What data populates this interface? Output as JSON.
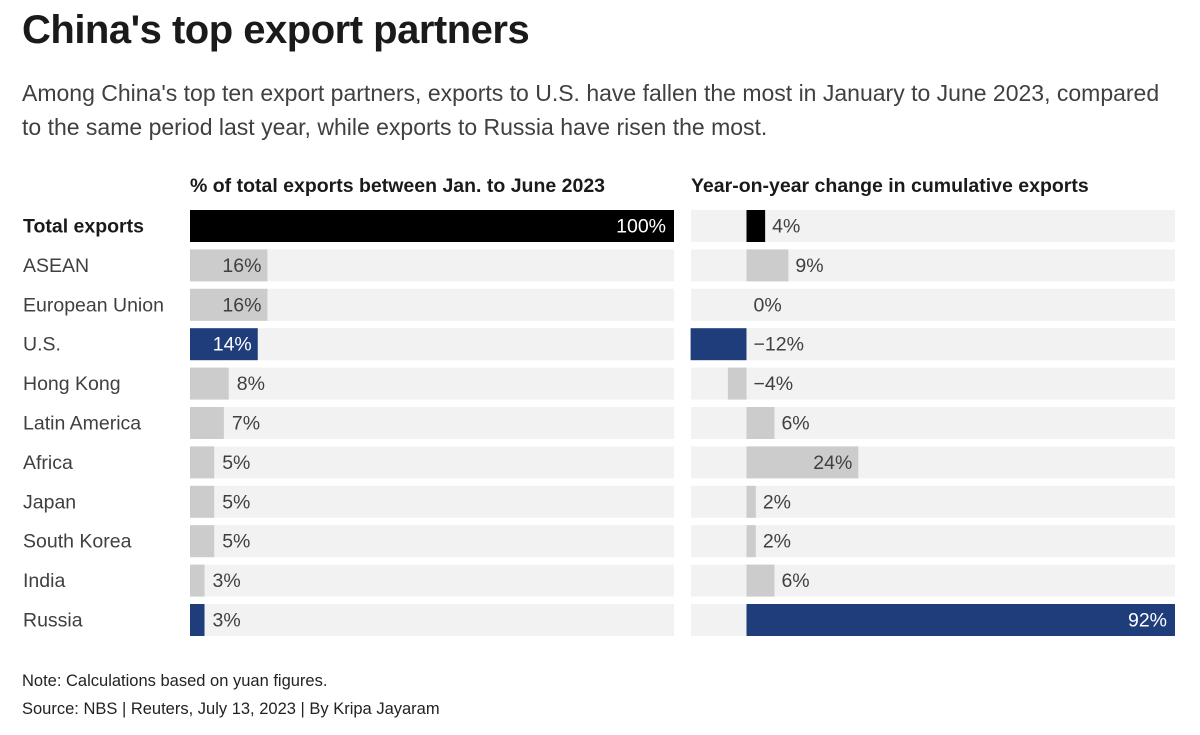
{
  "title": "China's top export partners",
  "subtitle": "Among China's top ten export partners, exports to U.S. have fallen the most in January to June 2023, compared to the same period last year, while exports to Russia have risen the most.",
  "note": "Note: Calculations based on yuan figures.",
  "source": "Source: NBS | Reuters, July 13, 2023 | By Kripa Jayaram",
  "colors": {
    "total": "#000000",
    "highlight": "#1f3d7a",
    "default": "#cccccc",
    "track": "#f2f2f2",
    "label_on_dark": "#ffffff",
    "label_default": "#404040"
  },
  "chart_data": [
    {
      "type": "bar",
      "title": "% of total exports between Jan. to June 2023",
      "orientation": "horizontal",
      "categories": [
        "Total exports",
        "ASEAN",
        "European Union",
        "U.S.",
        "Hong Kong",
        "Latin America",
        "Africa",
        "Japan",
        "South Korea",
        "India",
        "Russia"
      ],
      "values": [
        100,
        16,
        16,
        14,
        8,
        7,
        5,
        5,
        5,
        3,
        3
      ],
      "labels": [
        "100%",
        "16%",
        "16%",
        "14%",
        "8%",
        "7%",
        "5%",
        "5%",
        "5%",
        "3%",
        "3%"
      ],
      "xlim": [
        0,
        100
      ],
      "highlight": [
        "Total exports",
        "U.S.",
        "Russia"
      ]
    },
    {
      "type": "bar",
      "title": "Year-on-year change in cumulative exports",
      "orientation": "horizontal",
      "categories": [
        "Total exports",
        "ASEAN",
        "European Union",
        "U.S.",
        "Hong Kong",
        "Latin America",
        "Africa",
        "Japan",
        "South Korea",
        "India",
        "Russia"
      ],
      "values": [
        4,
        9,
        0,
        -12,
        -4,
        6,
        24,
        2,
        2,
        6,
        92
      ],
      "labels": [
        "4%",
        "9%",
        "0%",
        "−12%",
        "−4%",
        "6%",
        "24%",
        "2%",
        "2%",
        "6%",
        "92%"
      ],
      "xlim": [
        -12,
        92
      ],
      "highlight": [
        "Total exports",
        "U.S.",
        "Russia"
      ]
    }
  ]
}
